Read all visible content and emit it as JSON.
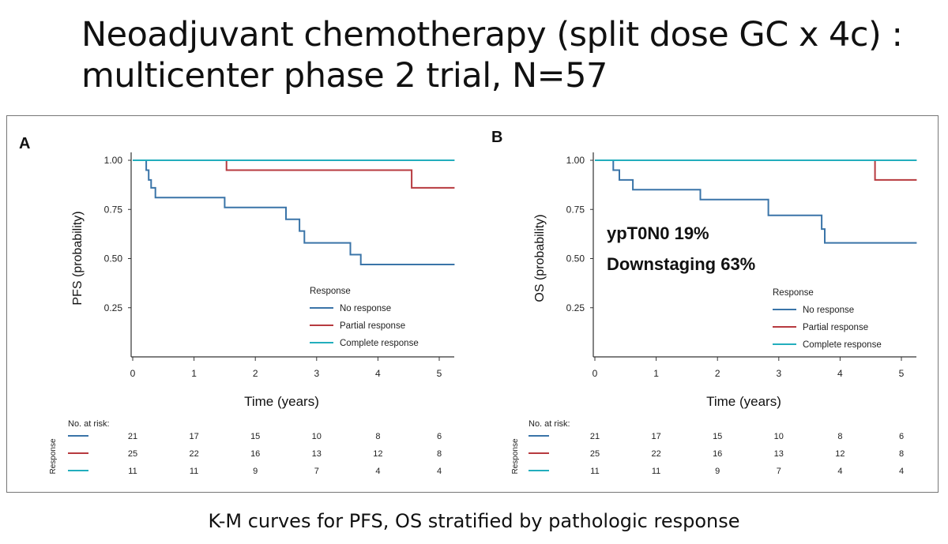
{
  "slide": {
    "title_line1": "Neoadjuvant chemotherapy (split dose GC x 4c) :",
    "title_line2": "multicenter phase 2 trial, N=57",
    "caption": "K-M curves for PFS, OS stratified by pathologic response"
  },
  "colors": {
    "no_response": "#3a74a8",
    "partial_response": "#b73a3f",
    "complete_response": "#23aebd"
  },
  "chart_data": [
    {
      "type": "line",
      "panel_label": "A",
      "xlabel": "Time (years)",
      "ylabel": "PFS (probability)",
      "xlim": [
        0,
        5.25
      ],
      "ylim": [
        0,
        1.0
      ],
      "xticks": [
        "0",
        "1",
        "2",
        "3",
        "4",
        "5"
      ],
      "yticks": [
        "0.25",
        "0.50",
        "0.75",
        "1.00"
      ],
      "legend_title": "Response",
      "legend_position": "bottom-right",
      "series": [
        {
          "name": "No response",
          "color_key": "no_response",
          "points": [
            [
              0,
              1.0
            ],
            [
              0.22,
              1.0
            ],
            [
              0.22,
              0.95
            ],
            [
              0.26,
              0.95
            ],
            [
              0.26,
              0.9
            ],
            [
              0.3,
              0.9
            ],
            [
              0.3,
              0.86
            ],
            [
              0.37,
              0.86
            ],
            [
              0.37,
              0.81
            ],
            [
              1.5,
              0.81
            ],
            [
              1.5,
              0.76
            ],
            [
              2.5,
              0.76
            ],
            [
              2.5,
              0.7
            ],
            [
              2.72,
              0.7
            ],
            [
              2.72,
              0.64
            ],
            [
              2.8,
              0.64
            ],
            [
              2.8,
              0.58
            ],
            [
              3.55,
              0.58
            ],
            [
              3.55,
              0.52
            ],
            [
              3.72,
              0.52
            ],
            [
              3.72,
              0.47
            ],
            [
              5.25,
              0.47
            ]
          ]
        },
        {
          "name": "Partial response",
          "color_key": "partial_response",
          "points": [
            [
              0,
              1.0
            ],
            [
              1.53,
              1.0
            ],
            [
              1.53,
              0.95
            ],
            [
              4.55,
              0.95
            ],
            [
              4.55,
              0.86
            ],
            [
              5.25,
              0.86
            ]
          ]
        },
        {
          "name": "Complete response",
          "color_key": "complete_response",
          "points": [
            [
              0,
              1.0
            ],
            [
              5.25,
              1.0
            ]
          ]
        }
      ],
      "risk_table": {
        "title": "No. at risk:",
        "row_label": "Response",
        "rows": [
          {
            "color_key": "no_response",
            "values": [
              "21",
              "17",
              "15",
              "10",
              "8",
              "6"
            ]
          },
          {
            "color_key": "partial_response",
            "values": [
              "25",
              "22",
              "16",
              "13",
              "12",
              "8"
            ]
          },
          {
            "color_key": "complete_response",
            "values": [
              "11",
              "11",
              "9",
              "7",
              "4",
              "4"
            ]
          }
        ]
      }
    },
    {
      "type": "line",
      "panel_label": "B",
      "xlabel": "Time (years)",
      "ylabel": "OS (probability)",
      "xlim": [
        0,
        5.25
      ],
      "ylim": [
        0,
        1.0
      ],
      "xticks": [
        "0",
        "1",
        "2",
        "3",
        "4",
        "5"
      ],
      "yticks": [
        "0.25",
        "0.50",
        "0.75",
        "1.00"
      ],
      "legend_title": "Response",
      "legend_position": "bottom-right",
      "annotations": [
        "ypT0N0 19%",
        "Downstaging 63%"
      ],
      "series": [
        {
          "name": "No response",
          "color_key": "no_response",
          "points": [
            [
              0,
              1.0
            ],
            [
              0.3,
              1.0
            ],
            [
              0.3,
              0.95
            ],
            [
              0.4,
              0.95
            ],
            [
              0.4,
              0.9
            ],
            [
              0.62,
              0.9
            ],
            [
              0.62,
              0.85
            ],
            [
              1.72,
              0.85
            ],
            [
              1.72,
              0.8
            ],
            [
              2.83,
              0.8
            ],
            [
              2.83,
              0.72
            ],
            [
              3.7,
              0.72
            ],
            [
              3.7,
              0.65
            ],
            [
              3.75,
              0.65
            ],
            [
              3.75,
              0.58
            ],
            [
              5.25,
              0.58
            ]
          ]
        },
        {
          "name": "Partial response",
          "color_key": "partial_response",
          "points": [
            [
              0,
              1.0
            ],
            [
              4.57,
              1.0
            ],
            [
              4.57,
              0.9
            ],
            [
              5.25,
              0.9
            ]
          ]
        },
        {
          "name": "Complete response",
          "color_key": "complete_response",
          "points": [
            [
              0,
              1.0
            ],
            [
              5.25,
              1.0
            ]
          ]
        }
      ],
      "risk_table": {
        "title": "No. at risk:",
        "row_label": "Response",
        "rows": [
          {
            "color_key": "no_response",
            "values": [
              "21",
              "17",
              "15",
              "10",
              "8",
              "6"
            ]
          },
          {
            "color_key": "partial_response",
            "values": [
              "25",
              "22",
              "16",
              "13",
              "12",
              "8"
            ]
          },
          {
            "color_key": "complete_response",
            "values": [
              "11",
              "11",
              "9",
              "7",
              "4",
              "4"
            ]
          }
        ]
      }
    }
  ]
}
